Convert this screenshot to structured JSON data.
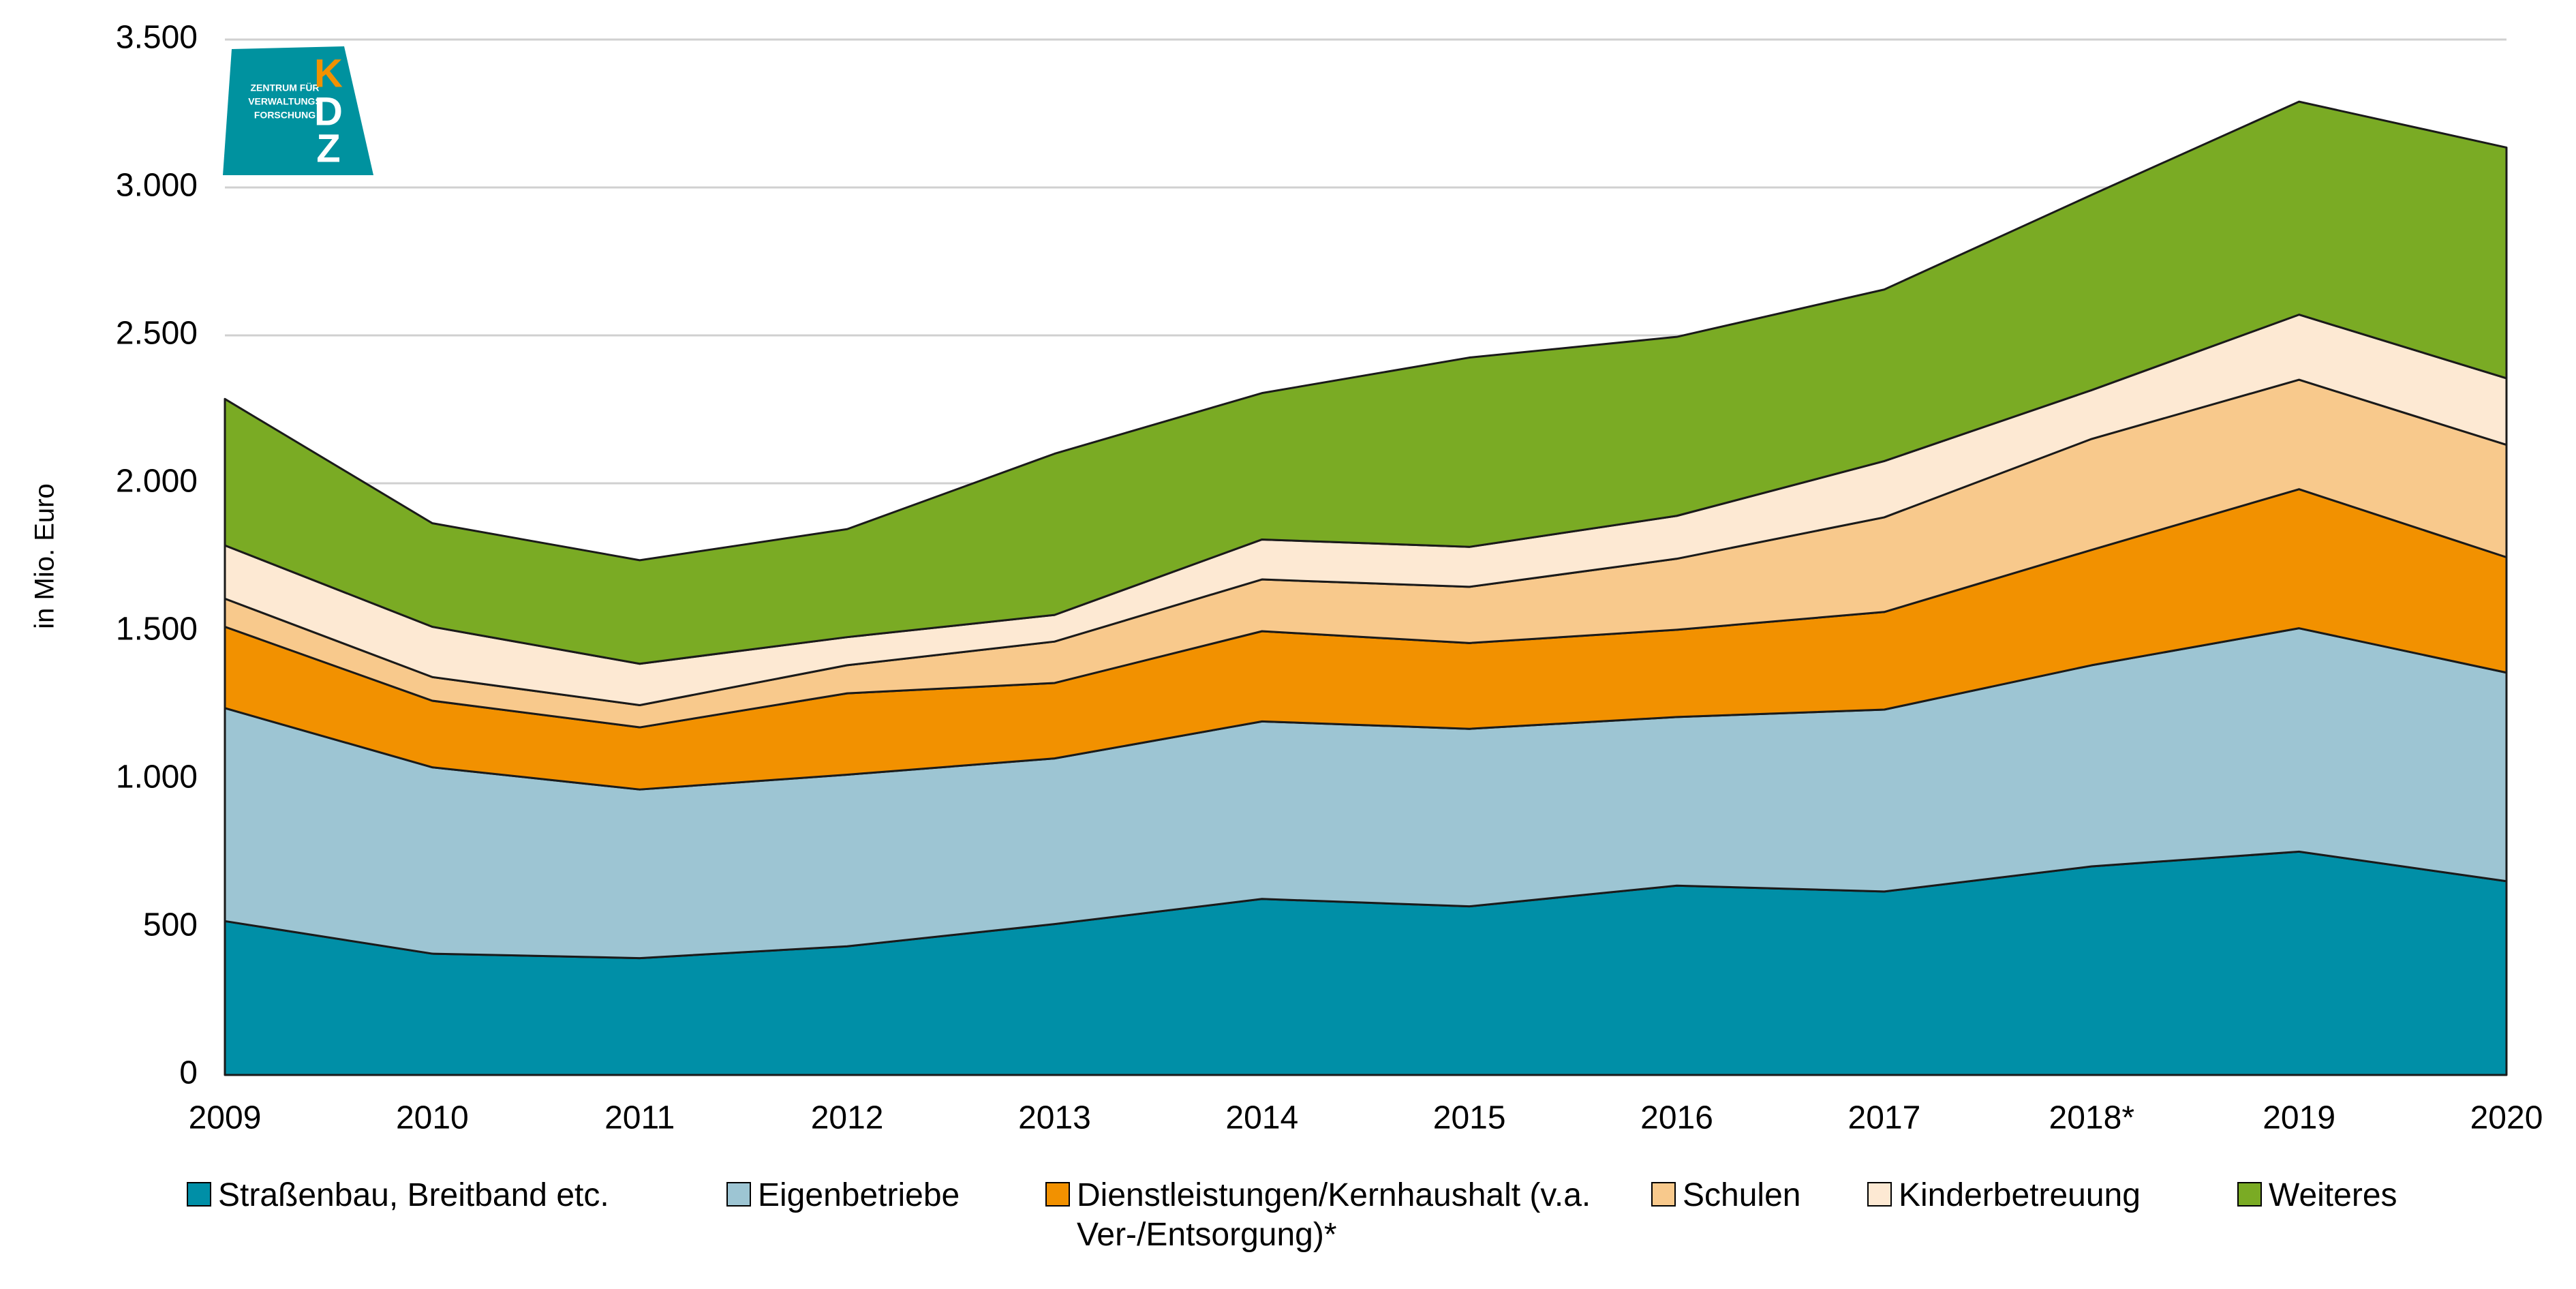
{
  "chart_data": {
    "type": "stacked_area",
    "y_axis_label": "in Mio. Euro",
    "categories": [
      "2009",
      "2010",
      "2011",
      "2012",
      "2013",
      "2014",
      "2015",
      "2016",
      "2017",
      "2018*",
      "2019",
      "2020"
    ],
    "series": [
      {
        "name": "Straßenbau, Breitband etc.",
        "color": "#008fa7",
        "values": [
          520,
          410,
          395,
          435,
          510,
          595,
          570,
          640,
          620,
          705,
          755,
          655
        ]
      },
      {
        "name": "Eigenbetriebe",
        "color": "#9dc5d3",
        "values": [
          720,
          630,
          570,
          580,
          560,
          600,
          600,
          570,
          615,
          680,
          755,
          705
        ]
      },
      {
        "name": "Dienstleistungen/Kernhaushalt (v.a. Ver-/Entsorgung)*",
        "color": "#f29100",
        "values": [
          275,
          225,
          210,
          275,
          255,
          305,
          290,
          295,
          330,
          390,
          470,
          390
        ]
      },
      {
        "name": "Schulen",
        "color": "#f8c98c",
        "values": [
          95,
          80,
          75,
          95,
          140,
          175,
          190,
          240,
          320,
          375,
          370,
          380
        ]
      },
      {
        "name": "Kinderbetreuung",
        "color": "#fde9d3",
        "values": [
          180,
          170,
          140,
          95,
          90,
          135,
          135,
          145,
          190,
          165,
          220,
          225
        ]
      },
      {
        "name": "Weiteres",
        "color": "#7aab24",
        "values": [
          495,
          350,
          350,
          365,
          545,
          495,
          640,
          605,
          580,
          660,
          720,
          780
        ]
      }
    ],
    "ylim": [
      0,
      3500
    ],
    "yticks": [
      0,
      500,
      {
        "value": 1000,
        "label": "1.000"
      },
      {
        "value": 1500,
        "label": "1.500"
      },
      {
        "value": 2000,
        "label": "2.000"
      },
      {
        "value": 2500,
        "label": "2.500"
      },
      {
        "value": 3000,
        "label": "3.000"
      },
      {
        "value": 3500,
        "label": "3.500"
      }
    ],
    "grid": true,
    "legend": "bottom"
  },
  "logo": {
    "text_lines": [
      "ZENTRUM FÜR",
      "VERWALTUNGS",
      "FORSCHUNG"
    ],
    "letters": [
      "K",
      "D",
      "Z"
    ]
  }
}
